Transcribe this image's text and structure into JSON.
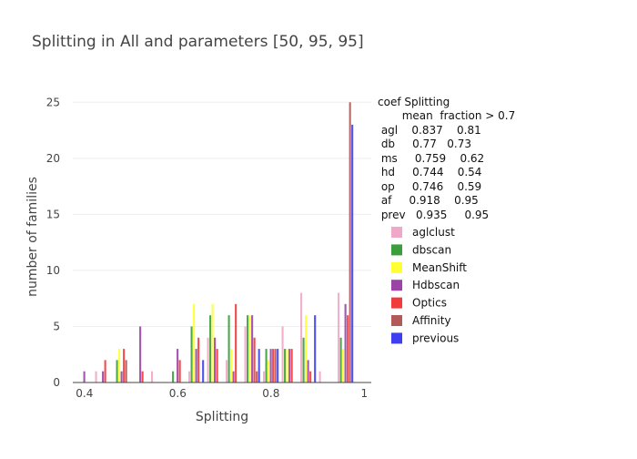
{
  "chart_data": {
    "type": "bar",
    "title": "Splitting in All  and parameters [50, 95, 95]",
    "xlabel": "Splitting",
    "ylabel": "number of families",
    "xlim": [
      0.375,
      1.015
    ],
    "ylim": [
      0,
      26
    ],
    "x_ticks": [
      0.4,
      0.6,
      0.8,
      1
    ],
    "x_tick_labels": [
      "0.4",
      "0.6",
      "0.8",
      "1"
    ],
    "y_ticks": [
      0,
      5,
      10,
      15,
      20,
      25
    ],
    "y_tick_labels": [
      "0",
      "5",
      "10",
      "15",
      "20",
      "25"
    ],
    "grid": "horizontal",
    "legend_position": "right",
    "bin_starts": [
      0.38,
      0.42,
      0.46,
      0.5,
      0.54,
      0.58,
      0.62,
      0.66,
      0.7,
      0.74,
      0.78,
      0.82,
      0.86,
      0.9,
      0.94,
      0.98
    ],
    "bin_width": 0.04,
    "series": [
      {
        "name": "aglclust",
        "color": "#F1A7C7",
        "values": [
          0,
          1,
          0,
          0,
          1,
          0,
          1,
          4,
          2,
          5,
          1,
          5,
          8,
          1,
          8,
          0
        ]
      },
      {
        "name": "dbscan",
        "color": "#3A9E3A",
        "values": [
          0,
          0,
          2,
          0,
          0,
          1,
          5,
          6,
          6,
          6,
          3,
          3,
          4,
          0,
          4,
          0
        ]
      },
      {
        "name": "MeanShift",
        "color": "#FFFF33",
        "values": [
          0,
          0,
          3,
          0,
          0,
          0,
          7,
          7,
          3,
          6,
          2,
          3,
          6,
          0,
          3,
          0
        ]
      },
      {
        "name": "Hdbscan",
        "color": "#9B44A6",
        "values": [
          1,
          1,
          1,
          5,
          0,
          3,
          3,
          4,
          1,
          6,
          3,
          3,
          2,
          0,
          7,
          0
        ]
      },
      {
        "name": "Optics",
        "color": "#F23B3B",
        "values": [
          0,
          2,
          3,
          1,
          0,
          2,
          4,
          3,
          7,
          4,
          3,
          3,
          1,
          0,
          6,
          0
        ]
      },
      {
        "name": "Affinity",
        "color": "#B25959",
        "values": [
          0,
          0,
          2,
          0,
          0,
          0,
          0,
          0,
          0,
          1,
          3,
          0,
          0,
          0,
          25,
          0
        ]
      },
      {
        "name": "previous",
        "color": "#3F3FF0",
        "values": [
          0,
          0,
          0,
          0,
          0,
          0,
          2,
          0,
          0,
          3,
          3,
          0,
          6,
          0,
          23,
          0
        ]
      }
    ]
  },
  "legend": {
    "title": "coef Splitting",
    "stats_header": "       mean  fraction > 0.7",
    "stats_rows": [
      " agl    0.837    0.81",
      " db     0.77   0.73",
      " ms     0.759    0.62",
      " hd     0.744    0.54",
      " op     0.746    0.59",
      " af     0.918    0.95",
      " prev   0.935     0.95"
    ]
  }
}
